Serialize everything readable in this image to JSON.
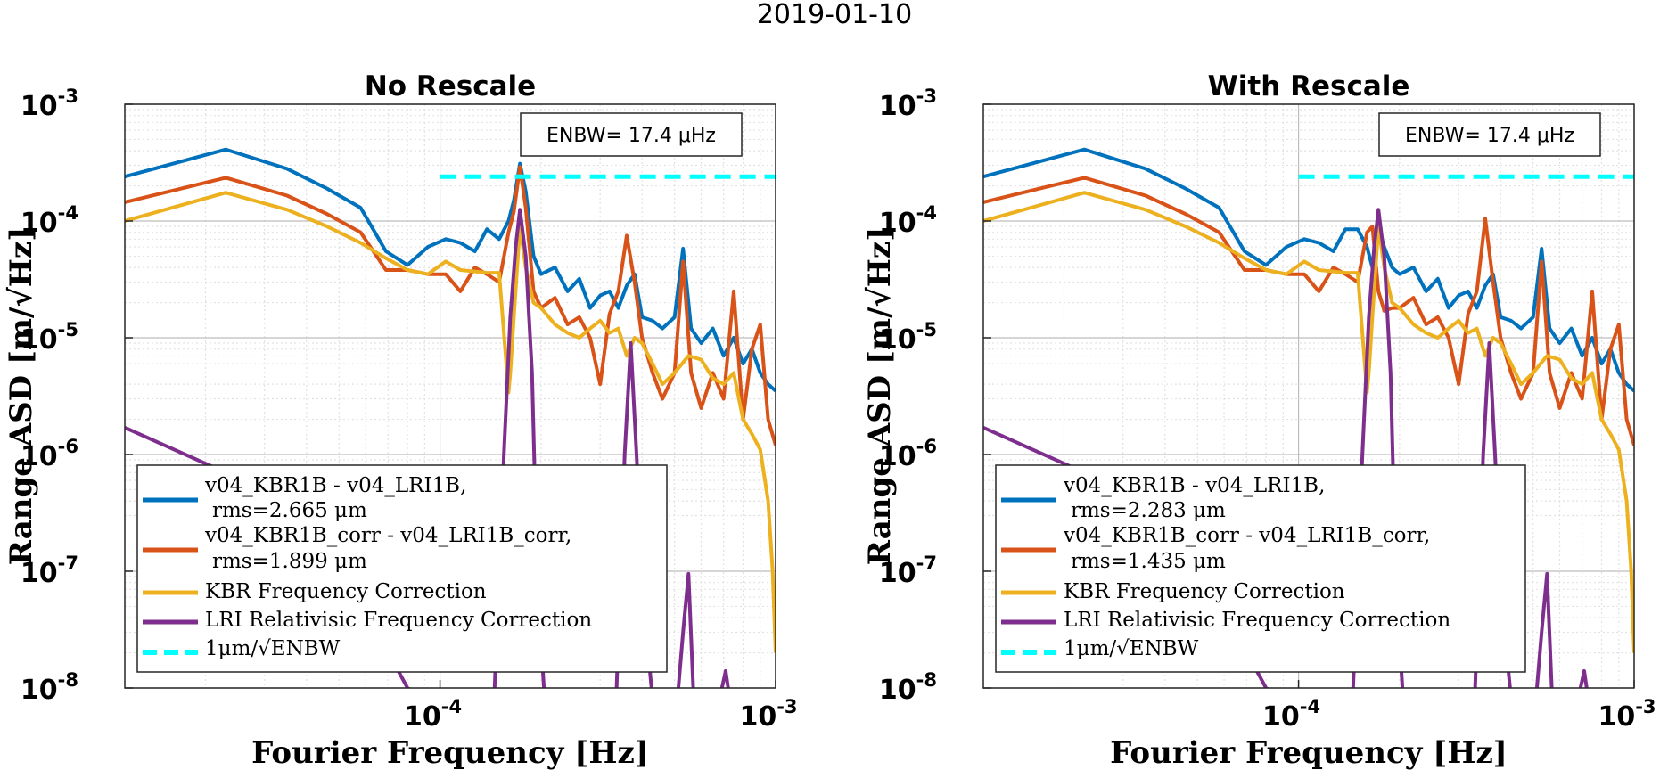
{
  "suptitle": "2019-01-10",
  "colors": {
    "kbr_minus_lri": "#0072BD",
    "kbr_minus_lri_corr": "#D95319",
    "kbr_freq_corr": "#EDB120",
    "lri_rel_corr": "#7E2F8E",
    "threshold": "#00FFFF"
  },
  "chart_data": [
    {
      "type": "line",
      "title": "No Rescale",
      "xlabel": "Fourier Frequency [Hz]",
      "ylabel": "Range ASD [m/√Hz]",
      "xscale": "log",
      "yscale": "log",
      "xlim": [
        1.15e-05,
        0.001
      ],
      "ylim": [
        1e-08,
        0.001
      ],
      "xticks": [
        {
          "base": "10",
          "exp": "-4",
          "value": 0.0001
        },
        {
          "base": "10",
          "exp": "-3",
          "value": 0.001
        }
      ],
      "yticks": [
        {
          "base": "10",
          "exp": "-3",
          "value": 0.001
        },
        {
          "base": "10",
          "exp": "-4",
          "value": 0.0001
        },
        {
          "base": "10",
          "exp": "-5",
          "value": 1e-05
        },
        {
          "base": "10",
          "exp": "-6",
          "value": 1e-06
        },
        {
          "base": "10",
          "exp": "-7",
          "value": 1e-07
        },
        {
          "base": "10",
          "exp": "-8",
          "value": 1e-08
        }
      ],
      "annotation": "ENBW= 17.4 μHz",
      "grid": true,
      "legend_position": "lower-left",
      "legend": [
        {
          "name": "v04_KBR1B - v04_LRI1B,",
          "detail": "rms=2.665 μm"
        },
        {
          "name": "v04_KBR1B_corr - v04_LRI1B_corr,",
          "detail": "rms=1.899 μm"
        },
        {
          "name": "KBR Frequency Correction",
          "detail": ""
        },
        {
          "name": "LRI Relativisic Frequency Correction",
          "detail": ""
        },
        {
          "name": "1μm/√ENBW",
          "detail": ""
        }
      ],
      "series": [
        {
          "name": "v04_KBR1B - v04_LRI1B",
          "x": [
            1.15e-05,
            2.3e-05,
            3.5e-05,
            4.6e-05,
            5.8e-05,
            6.9e-05,
            8e-05,
            9.2e-05,
            0.000104,
            0.000115,
            0.000127,
            0.000138,
            0.00015,
            0.00016,
            0.000166,
            0.000173,
            0.00018,
            0.00019,
            0.0002,
            0.00022,
            0.00024,
            0.00026,
            0.00028,
            0.0003,
            0.00032,
            0.00034,
            0.00036,
            0.00038,
            0.0004,
            0.00043,
            0.00046,
            0.0005,
            0.00053,
            0.00056,
            0.0006,
            0.00065,
            0.0007,
            0.00075,
            0.0008,
            0.00085,
            0.0009,
            0.00095,
            0.001
          ],
          "y": [
            0.00024,
            0.00041,
            0.00028,
            0.00019,
            0.00013,
            5.5e-05,
            4.2e-05,
            6e-05,
            7e-05,
            6.5e-05,
            5.5e-05,
            8.5e-05,
            7e-05,
            0.0001,
            0.00015,
            0.00031,
            0.00018,
            5e-05,
            3.5e-05,
            4e-05,
            2.5e-05,
            3.2e-05,
            1.8e-05,
            2.3e-05,
            2.5e-05,
            1.8e-05,
            2.8e-05,
            3.5e-05,
            1.5e-05,
            1.4e-05,
            1.2e-05,
            1.5e-05,
            5.8e-05,
            1.2e-05,
            9e-06,
            1.2e-05,
            7e-06,
            1e-05,
            6e-06,
            8e-06,
            5e-06,
            4e-06,
            3.5e-06
          ]
        },
        {
          "name": "v04_KBR1B_corr - v04_LRI1B_corr",
          "x": [
            1.15e-05,
            2.3e-05,
            3.5e-05,
            4.6e-05,
            5.8e-05,
            6.9e-05,
            8e-05,
            9.2e-05,
            0.000104,
            0.000115,
            0.000127,
            0.000138,
            0.00015,
            0.00016,
            0.000166,
            0.000173,
            0.00018,
            0.00019,
            0.0002,
            0.00022,
            0.00024,
            0.00026,
            0.00028,
            0.0003,
            0.00032,
            0.00034,
            0.00036,
            0.00038,
            0.0004,
            0.00043,
            0.00046,
            0.0005,
            0.00053,
            0.00056,
            0.0006,
            0.00065,
            0.0007,
            0.00075,
            0.0008,
            0.00085,
            0.0009,
            0.00095,
            0.001
          ],
          "y": [
            0.000145,
            0.000235,
            0.000165,
            0.000115,
            8e-05,
            3.8e-05,
            3.8e-05,
            3.5e-05,
            3.5e-05,
            2.5e-05,
            4e-05,
            3.5e-05,
            3e-05,
            8e-05,
            0.00012,
            0.00029,
            0.00013,
            2.5e-05,
            1.8e-05,
            2.2e-05,
            1.3e-05,
            1.5e-05,
            1e-05,
            4e-06,
            1.6e-05,
            2.5e-05,
            7.5e-05,
            3e-05,
            1e-05,
            5e-06,
            3e-06,
            5e-06,
            4.5e-05,
            5e-06,
            2.5e-06,
            5e-06,
            3e-06,
            2.5e-05,
            2e-06,
            8e-06,
            1.3e-05,
            2e-06,
            1.2e-06
          ]
        },
        {
          "name": "KBR Frequency Correction",
          "x": [
            1.15e-05,
            2.3e-05,
            3.5e-05,
            4.6e-05,
            5.8e-05,
            6.9e-05,
            8e-05,
            9.2e-05,
            0.000104,
            0.000115,
            0.000127,
            0.000138,
            0.00015,
            0.00016,
            0.000162,
            0.000166,
            0.000173,
            0.00018,
            0.00019,
            0.0002,
            0.00022,
            0.00024,
            0.00026,
            0.00028,
            0.0003,
            0.00032,
            0.00034,
            0.00036,
            0.00038,
            0.0004,
            0.00043,
            0.00046,
            0.0005,
            0.00055,
            0.0006,
            0.00065,
            0.0007,
            0.00075,
            0.0008,
            0.00085,
            0.0009,
            0.00095,
            0.00098,
            0.001
          ],
          "y": [
            0.0001,
            0.000175,
            0.000125,
            9e-05,
            6.5e-05,
            4.8e-05,
            3.8e-05,
            3.5e-05,
            4.5e-05,
            3.8e-05,
            3.7e-05,
            3.6e-05,
            3.6e-05,
            3.4e-06,
            5e-06,
            1.5e-05,
            9e-05,
            4e-05,
            2e-05,
            1.8e-05,
            1.3e-05,
            1.1e-05,
            1e-05,
            1.2e-05,
            1.4e-05,
            1.1e-05,
            1.2e-05,
            7e-06,
            1e-05,
            9e-06,
            6e-06,
            4e-06,
            5e-06,
            7e-06,
            6.5e-06,
            4.5e-06,
            4e-06,
            5e-06,
            2e-06,
            1.5e-06,
            1.1e-06,
            4e-07,
            1e-07,
            2e-08
          ]
        },
        {
          "name": "LRI Relativisic Frequency Correction",
          "x": [
            1.15e-05,
            2.3e-05,
            3.5e-05,
            4.6e-05,
            5.8e-05,
            6.9e-05,
            8e-05,
            9.2e-05,
            0.000104,
            0.000115,
            0.000127,
            0.000138,
            0.000145,
            0.000155,
            0.000162,
            0.000168,
            0.000173,
            0.00018,
            0.000188,
            0.000195,
            0.000205,
            0.00022,
            0.00026,
            0.00031,
            0.000335,
            0.000355,
            0.00037,
            0.000385,
            0.000405,
            0.00043,
            0.00047,
            0.00051,
            0.00053,
            0.00055,
            0.00057,
            0.0006,
            0.00068,
            0.00071,
            0.00073,
            0.00076,
            0.0008,
            0.00086,
            0.00093,
            0.001
          ],
          "y": [
            1.7e-06,
            7e-07,
            2.8e-07,
            1.2e-07,
            5e-08,
            2.2e-08,
            1e-08,
            8e-09,
            8e-09,
            8e-09,
            8e-09,
            8e-09,
            8e-09,
            1e-06,
            1.5e-05,
            6e-05,
            0.000125,
            5e-05,
            5e-06,
            8e-08,
            8e-09,
            8e-09,
            8e-09,
            8e-09,
            8e-09,
            1e-06,
            9e-06,
            1e-06,
            5e-08,
            8e-09,
            8e-09,
            8e-09,
            3e-08,
            9.5e-08,
            8e-09,
            8e-09,
            8e-09,
            1.4e-08,
            8e-09,
            8e-09,
            8e-09,
            8e-09,
            8e-09,
            8e-09
          ]
        },
        {
          "name": "1μm/√ENBW",
          "x": [
            0.0001,
            0.001
          ],
          "y": [
            0.00024,
            0.00024
          ]
        }
      ]
    },
    {
      "type": "line",
      "title": "With Rescale",
      "xlabel": "Fourier Frequency [Hz]",
      "ylabel": "Range ASD [m/√Hz]",
      "xscale": "log",
      "yscale": "log",
      "xlim": [
        1.15e-05,
        0.001
      ],
      "ylim": [
        1e-08,
        0.001
      ],
      "xticks": [
        {
          "base": "10",
          "exp": "-4",
          "value": 0.0001
        },
        {
          "base": "10",
          "exp": "-3",
          "value": 0.001
        }
      ],
      "yticks": [
        {
          "base": "10",
          "exp": "-3",
          "value": 0.001
        },
        {
          "base": "10",
          "exp": "-4",
          "value": 0.0001
        },
        {
          "base": "10",
          "exp": "-5",
          "value": 1e-05
        },
        {
          "base": "10",
          "exp": "-6",
          "value": 1e-06
        },
        {
          "base": "10",
          "exp": "-7",
          "value": 1e-07
        },
        {
          "base": "10",
          "exp": "-8",
          "value": 1e-08
        }
      ],
      "annotation": "ENBW= 17.4 μHz",
      "grid": true,
      "legend_position": "lower-left",
      "legend": [
        {
          "name": "v04_KBR1B - v04_LRI1B,",
          "detail": "rms=2.283 μm"
        },
        {
          "name": "v04_KBR1B_corr - v04_LRI1B_corr,",
          "detail": "rms=1.435 μm"
        },
        {
          "name": "KBR Frequency Correction",
          "detail": ""
        },
        {
          "name": "LRI Relativisic Frequency Correction",
          "detail": ""
        },
        {
          "name": "1μm/√ENBW",
          "detail": ""
        }
      ],
      "series": [
        {
          "name": "v04_KBR1B - v04_LRI1B",
          "x": [
            1.15e-05,
            2.3e-05,
            3.5e-05,
            4.6e-05,
            5.8e-05,
            6.9e-05,
            8e-05,
            9.2e-05,
            0.000104,
            0.000115,
            0.000127,
            0.000138,
            0.00015,
            0.00016,
            0.000166,
            0.000173,
            0.00018,
            0.00019,
            0.0002,
            0.00022,
            0.00024,
            0.00026,
            0.00028,
            0.0003,
            0.00032,
            0.00034,
            0.00036,
            0.00038,
            0.0004,
            0.00043,
            0.00046,
            0.0005,
            0.00053,
            0.00056,
            0.0006,
            0.00065,
            0.0007,
            0.00075,
            0.0008,
            0.00085,
            0.0009,
            0.00095,
            0.001
          ],
          "y": [
            0.00024,
            0.00041,
            0.00028,
            0.00019,
            0.00013,
            5.5e-05,
            4.2e-05,
            6e-05,
            7e-05,
            6.5e-05,
            5.5e-05,
            8.5e-05,
            8.5e-05,
            6e-05,
            4e-05,
            9e-05,
            6e-05,
            4e-05,
            3.5e-05,
            4e-05,
            2.5e-05,
            3.2e-05,
            1.8e-05,
            2.3e-05,
            2.5e-05,
            1.8e-05,
            2.8e-05,
            3.5e-05,
            1.5e-05,
            1.4e-05,
            1.2e-05,
            1.5e-05,
            5.8e-05,
            1.2e-05,
            9e-06,
            1.2e-05,
            7e-06,
            1e-05,
            6e-06,
            8e-06,
            5e-06,
            4e-06,
            3.5e-06
          ]
        },
        {
          "name": "v04_KBR1B_corr - v04_LRI1B_corr",
          "x": [
            1.15e-05,
            2.3e-05,
            3.5e-05,
            4.6e-05,
            5.8e-05,
            6.9e-05,
            8e-05,
            9.2e-05,
            0.000104,
            0.000115,
            0.000127,
            0.000138,
            0.00015,
            0.00016,
            0.000166,
            0.000173,
            0.00018,
            0.00019,
            0.0002,
            0.00022,
            0.00024,
            0.00026,
            0.00028,
            0.0003,
            0.00032,
            0.00034,
            0.00036,
            0.00038,
            0.0004,
            0.00043,
            0.00046,
            0.0005,
            0.00053,
            0.00056,
            0.0006,
            0.00065,
            0.0007,
            0.00075,
            0.0008,
            0.00085,
            0.0009,
            0.00095,
            0.001
          ],
          "y": [
            0.000145,
            0.000235,
            0.000165,
            0.000115,
            8e-05,
            3.8e-05,
            3.8e-05,
            3.5e-05,
            3.5e-05,
            2.5e-05,
            4e-05,
            3.5e-05,
            3e-05,
            8e-05,
            9e-05,
            2.5e-05,
            1.7e-05,
            1.8e-05,
            1.8e-05,
            2.2e-05,
            1.3e-05,
            1.5e-05,
            1e-05,
            4e-06,
            1.6e-05,
            2.5e-05,
            0.000105,
            3e-05,
            1e-05,
            5e-06,
            3e-06,
            5e-06,
            4.5e-05,
            5e-06,
            2.5e-06,
            5e-06,
            3e-06,
            2.5e-05,
            2e-06,
            8e-06,
            1.3e-05,
            2e-06,
            1.2e-06
          ]
        },
        {
          "name": "KBR Frequency Correction",
          "x": [
            1.15e-05,
            2.3e-05,
            3.5e-05,
            4.6e-05,
            5.8e-05,
            6.9e-05,
            8e-05,
            9.2e-05,
            0.000104,
            0.000115,
            0.000127,
            0.000138,
            0.00015,
            0.00016,
            0.000162,
            0.000166,
            0.000173,
            0.00018,
            0.00019,
            0.0002,
            0.00022,
            0.00024,
            0.00026,
            0.00028,
            0.0003,
            0.00032,
            0.00034,
            0.00036,
            0.00038,
            0.0004,
            0.00043,
            0.00046,
            0.0005,
            0.00055,
            0.0006,
            0.00065,
            0.0007,
            0.00075,
            0.0008,
            0.00085,
            0.0009,
            0.00095,
            0.00098,
            0.001
          ],
          "y": [
            0.0001,
            0.000175,
            0.000125,
            9e-05,
            6.5e-05,
            4.8e-05,
            3.8e-05,
            3.5e-05,
            4.5e-05,
            3.8e-05,
            3.7e-05,
            3.6e-05,
            3.6e-05,
            3.4e-06,
            5e-06,
            1.5e-05,
            9e-05,
            4e-05,
            2e-05,
            1.8e-05,
            1.3e-05,
            1.1e-05,
            1e-05,
            1.2e-05,
            1.4e-05,
            1.1e-05,
            1.2e-05,
            7e-06,
            1e-05,
            9e-06,
            6e-06,
            4e-06,
            5e-06,
            7e-06,
            6.5e-06,
            4.5e-06,
            4e-06,
            5e-06,
            2e-06,
            1.5e-06,
            1.1e-06,
            4e-07,
            1e-07,
            2e-08
          ]
        },
        {
          "name": "LRI Relativisic Frequency Correction",
          "x": [
            1.15e-05,
            2.3e-05,
            3.5e-05,
            4.6e-05,
            5.8e-05,
            6.9e-05,
            8e-05,
            9.2e-05,
            0.000104,
            0.000115,
            0.000127,
            0.000138,
            0.000145,
            0.000155,
            0.000162,
            0.000168,
            0.000173,
            0.00018,
            0.000188,
            0.000195,
            0.000205,
            0.00022,
            0.00026,
            0.00031,
            0.000335,
            0.000355,
            0.00037,
            0.000385,
            0.000405,
            0.00043,
            0.00047,
            0.00051,
            0.00053,
            0.00055,
            0.00057,
            0.0006,
            0.00068,
            0.00071,
            0.00073,
            0.00076,
            0.0008,
            0.00086,
            0.00093,
            0.001
          ],
          "y": [
            1.7e-06,
            7e-07,
            2.8e-07,
            1.2e-07,
            5e-08,
            2.2e-08,
            1e-08,
            8e-09,
            8e-09,
            8e-09,
            8e-09,
            8e-09,
            8e-09,
            1e-06,
            1.5e-05,
            6e-05,
            0.000125,
            5e-05,
            5e-06,
            8e-08,
            8e-09,
            8e-09,
            8e-09,
            8e-09,
            8e-09,
            1e-06,
            9e-06,
            1e-06,
            5e-08,
            8e-09,
            8e-09,
            8e-09,
            3e-08,
            9.5e-08,
            8e-09,
            8e-09,
            8e-09,
            1.4e-08,
            8e-09,
            8e-09,
            8e-09,
            8e-09,
            8e-09,
            8e-09
          ]
        },
        {
          "name": "1μm/√ENBW",
          "x": [
            0.0001,
            0.001
          ],
          "y": [
            0.00024,
            0.00024
          ]
        }
      ]
    }
  ]
}
